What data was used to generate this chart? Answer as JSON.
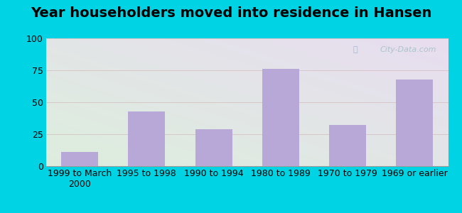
{
  "title": "Year householders moved into residence in Hansen",
  "categories": [
    "1999 to March\n2000",
    "1995 to 1998",
    "1990 to 1994",
    "1980 to 1989",
    "1970 to 1979",
    "1969 or earlier"
  ],
  "values": [
    11,
    43,
    29,
    76,
    32,
    68
  ],
  "bar_color": "#b8a8d8",
  "ylim": [
    0,
    100
  ],
  "yticks": [
    0,
    25,
    50,
    75,
    100
  ],
  "bg_top_left": "#ddeedd",
  "bg_bottom_right": "#e8ddf0",
  "outer_bg": "#00d4e4",
  "grid_color": "#ddaaaa",
  "title_fontsize": 14,
  "tick_fontsize": 9,
  "watermark": "City-Data.com"
}
